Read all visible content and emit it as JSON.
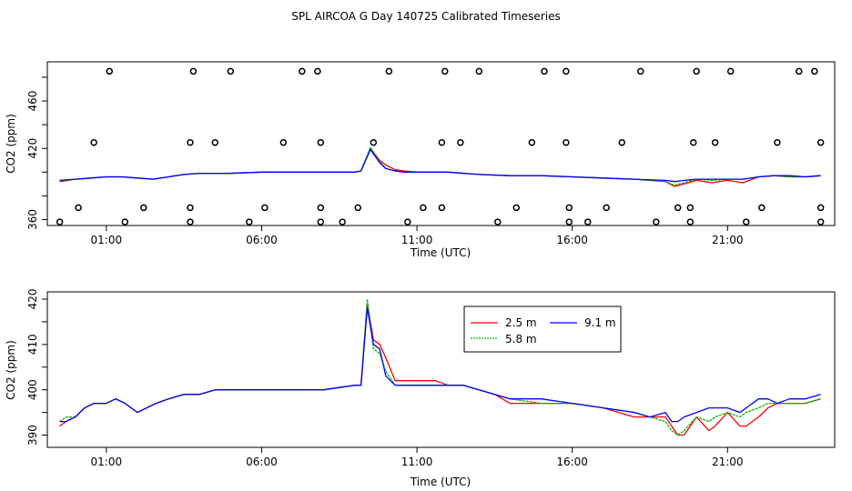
{
  "title": "SPL AIRCOA G  Day 140725  Calibrated Timeseries",
  "chart_data": [
    {
      "type": "line",
      "name": "top",
      "ylabel": "CO2 (ppm)",
      "xlabel": "Time (UTC)",
      "xlim": [
        -0.9,
        24.45
      ],
      "ylim": [
        355,
        493
      ],
      "yticks": [
        360,
        380,
        400,
        420,
        440,
        460,
        480
      ],
      "ytick_labels": [
        "360",
        "420",
        "460"
      ],
      "xticks": [
        1,
        6,
        11,
        16,
        21
      ],
      "xtick_labels": [
        "01:00",
        "06:00",
        "11:00",
        "16:00",
        "21:00"
      ],
      "series": [
        {
          "name": "2.5 m",
          "color": "#ff0000",
          "x": [
            -0.5,
            0,
            0.5,
            1,
            1.5,
            2,
            2.5,
            3,
            3.5,
            4,
            5,
            6,
            7,
            8,
            9,
            9.2,
            9.5,
            9.8,
            10,
            10.3,
            10.6,
            11,
            12,
            13,
            14,
            15,
            16,
            17,
            18,
            19,
            19.3,
            19.6,
            20,
            20.5,
            21,
            21.5,
            22,
            22.5,
            23,
            23.5,
            24
          ],
          "y": [
            392,
            394,
            395,
            396,
            396,
            395,
            394,
            396,
            398,
            399,
            399,
            400,
            400,
            400,
            400,
            401,
            420,
            410,
            406,
            402,
            401,
            400,
            400,
            398,
            397,
            397,
            396,
            395,
            394,
            392,
            388,
            390,
            393,
            391,
            393,
            391,
            396,
            397,
            396,
            396,
            397
          ]
        },
        {
          "name": "5.8 m",
          "color": "#00bb00",
          "x": [
            -0.5,
            0,
            0.5,
            1,
            1.5,
            2,
            2.5,
            3,
            3.5,
            4,
            5,
            6,
            7,
            8,
            9,
            9.2,
            9.5,
            9.8,
            10,
            10.3,
            10.6,
            11,
            12,
            13,
            14,
            15,
            16,
            17,
            18,
            19,
            19.3,
            19.6,
            20,
            20.5,
            21,
            21.5,
            22,
            22.5,
            23,
            23.5,
            24
          ],
          "y": [
            393,
            394,
            395,
            396,
            396,
            395,
            394,
            396,
            398,
            399,
            399,
            400,
            400,
            400,
            400,
            401,
            421,
            409,
            403,
            401,
            400,
            400,
            400,
            398,
            397,
            397,
            396,
            395,
            394,
            392,
            389,
            391,
            394,
            393,
            394,
            394,
            396,
            397,
            396,
            396,
            397
          ]
        },
        {
          "name": "9.1 m",
          "color": "#0000ff",
          "x": [
            -0.5,
            0,
            0.5,
            1,
            1.5,
            2,
            2.5,
            3,
            3.5,
            4,
            5,
            6,
            7,
            8,
            9,
            9.2,
            9.5,
            9.8,
            10,
            10.3,
            10.6,
            11,
            12,
            13,
            14,
            15,
            16,
            17,
            18,
            19,
            19.3,
            19.6,
            20,
            20.5,
            21,
            21.5,
            22,
            22.5,
            23,
            23.5,
            24
          ],
          "y": [
            393,
            394,
            395,
            396,
            396,
            395,
            394,
            396,
            398,
            399,
            399,
            400,
            400,
            400,
            400,
            401,
            419,
            408,
            403,
            401,
            400,
            400,
            400,
            398,
            397,
            397,
            396,
            395,
            394,
            393,
            392,
            393,
            394,
            394,
            394,
            394,
            396,
            397,
            397,
            396,
            397
          ]
        }
      ],
      "markers": {
        "type": "open-circle",
        "x": [
          -0.5,
          1.6,
          3.7,
          5.6,
          7.9,
          8.6,
          10.7,
          13.6,
          15.9,
          16.5,
          18.7,
          19.8,
          21.6,
          24.0,
          0.1,
          2.2,
          3.7,
          6.1,
          7.9,
          9.1,
          11.2,
          11.8,
          14.2,
          15.9,
          17.1,
          19.4,
          19.8,
          22.1,
          24.0,
          0.6,
          3.7,
          4.5,
          6.7,
          7.9,
          9.6,
          11.8,
          12.4,
          14.7,
          15.8,
          17.6,
          19.9,
          20.6,
          22.6,
          24.0,
          1.1,
          3.8,
          5.0,
          7.3,
          7.8,
          10.1,
          11.9,
          13.0,
          15.1,
          15.8,
          18.2,
          20.0,
          21.1,
          23.3,
          23.8
        ],
        "y": [
          358,
          358,
          358,
          358,
          358,
          358,
          358,
          358,
          358,
          358,
          358,
          358,
          358,
          358,
          370,
          370,
          370,
          370,
          370,
          370,
          370,
          370,
          370,
          370,
          370,
          370,
          370,
          370,
          370,
          425,
          425,
          425,
          425,
          425,
          425,
          425,
          425,
          425,
          425,
          425,
          425,
          425,
          425,
          425,
          485,
          485,
          485,
          485,
          485,
          485,
          485,
          485,
          485,
          485,
          485,
          485,
          485,
          485,
          485
        ]
      }
    },
    {
      "type": "line",
      "name": "bottom",
      "ylabel": "CO2 (ppm)",
      "xlabel": "Time (UTC)",
      "xlim": [
        -0.9,
        24.45
      ],
      "ylim": [
        387.3,
        421.6
      ],
      "yticks": [
        390,
        395,
        400,
        405,
        410,
        415,
        420
      ],
      "ytick_labels": [
        "390",
        "400",
        "410",
        "420"
      ],
      "xticks": [
        1,
        6,
        11,
        16,
        21
      ],
      "xtick_labels": [
        "01:00",
        "06:00",
        "11:00",
        "16:00",
        "21:00"
      ],
      "legend": {
        "position": "top-center",
        "entries": [
          "2.5 m",
          "5.8 m",
          "9.1 m"
        ]
      },
      "series": [
        {
          "name": "2.5 m",
          "color": "#ff0000",
          "x": [
            -0.5,
            -0.3,
            0,
            0.3,
            0.6,
            1,
            1.3,
            1.6,
            2,
            2.3,
            2.6,
            3,
            3.5,
            4,
            4.5,
            5,
            6,
            7,
            8,
            9,
            9.2,
            9.4,
            9.6,
            9.8,
            10,
            10.3,
            10.6,
            11,
            11.3,
            11.6,
            12,
            12.5,
            13,
            13.5,
            14,
            15,
            16,
            17,
            18,
            18.5,
            19,
            19.2,
            19.4,
            19.6,
            20,
            20.4,
            20.6,
            21,
            21.4,
            21.6,
            22,
            22.3,
            22.6,
            23,
            23.5,
            24
          ],
          "y": [
            392,
            393,
            394,
            396,
            397,
            397,
            398,
            397,
            395,
            396,
            397,
            398,
            399,
            399,
            400,
            400,
            400,
            400,
            400,
            401,
            401,
            419,
            411,
            410,
            407,
            402,
            402,
            402,
            402,
            402,
            401,
            401,
            400,
            399,
            397,
            397,
            397,
            396,
            394,
            394,
            394,
            392,
            390,
            390,
            394,
            391,
            392,
            395,
            392,
            392,
            394,
            396,
            397,
            397,
            397,
            398
          ]
        },
        {
          "name": "5.8 m",
          "color": "#00bb00",
          "x": [
            -0.5,
            -0.3,
            0,
            0.3,
            0.6,
            1,
            1.3,
            1.6,
            2,
            2.3,
            2.6,
            3,
            3.5,
            4,
            4.5,
            5,
            6,
            7,
            8,
            9,
            9.2,
            9.4,
            9.6,
            9.8,
            10,
            10.3,
            10.6,
            11,
            11.3,
            11.6,
            12,
            12.5,
            13,
            13.5,
            14,
            15,
            16,
            17,
            18,
            18.5,
            19,
            19.2,
            19.4,
            19.6,
            20,
            20.4,
            20.6,
            21,
            21.4,
            21.6,
            22,
            22.3,
            22.6,
            23,
            23.5,
            24
          ],
          "y": [
            393,
            394,
            394,
            396,
            397,
            397,
            398,
            397,
            395,
            396,
            397,
            398,
            399,
            399,
            400,
            400,
            400,
            400,
            400,
            401,
            401,
            420,
            409,
            408,
            404,
            401,
            401,
            401,
            401,
            401,
            401,
            401,
            400,
            399,
            398,
            397,
            397,
            396,
            395,
            394,
            393,
            391,
            390,
            391,
            394,
            393,
            394,
            395,
            394,
            395,
            396,
            397,
            397,
            397,
            397,
            398
          ]
        },
        {
          "name": "9.1 m",
          "color": "#0000ff",
          "x": [
            -0.5,
            -0.3,
            0,
            0.3,
            0.6,
            1,
            1.3,
            1.6,
            2,
            2.3,
            2.6,
            3,
            3.5,
            4,
            4.5,
            5,
            6,
            7,
            8,
            9,
            9.2,
            9.4,
            9.6,
            9.8,
            10,
            10.3,
            10.6,
            11,
            11.3,
            11.6,
            12,
            12.5,
            13,
            13.5,
            14,
            15,
            16,
            17,
            18,
            18.5,
            19,
            19.2,
            19.4,
            19.6,
            20,
            20.4,
            20.6,
            21,
            21.4,
            21.6,
            22,
            22.3,
            22.6,
            23,
            23.5,
            24
          ],
          "y": [
            393,
            393,
            394,
            396,
            397,
            397,
            398,
            397,
            395,
            396,
            397,
            398,
            399,
            399,
            400,
            400,
            400,
            400,
            400,
            401,
            401,
            418,
            410,
            409,
            403,
            401,
            401,
            401,
            401,
            401,
            401,
            401,
            400,
            399,
            398,
            398,
            397,
            396,
            395,
            394,
            395,
            393,
            393,
            394,
            395,
            396,
            396,
            396,
            395,
            396,
            398,
            398,
            397,
            398,
            398,
            399
          ]
        }
      ]
    }
  ]
}
